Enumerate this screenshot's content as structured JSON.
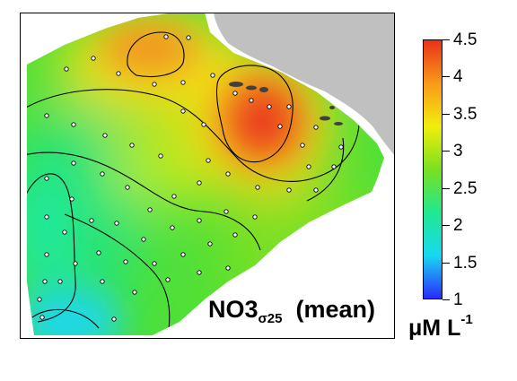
{
  "map": {
    "label_main": "NO3",
    "label_subscript": "σ25",
    "label_suffix": "(mean)",
    "land_color": "#c0c0c0"
  },
  "colorbar": {
    "min": 1,
    "max": 4.5,
    "ticks": [
      "4.5",
      "4",
      "3.5",
      "3",
      "2.5",
      "2",
      "1.5",
      "1"
    ],
    "gradient_stops": [
      "#2a2aff",
      "#18d8f0",
      "#20e890",
      "#7ae020",
      "#f2ee0c",
      "#f89a18",
      "#e8321a"
    ]
  },
  "units": {
    "base": "μM L",
    "exponent": "-1"
  }
}
